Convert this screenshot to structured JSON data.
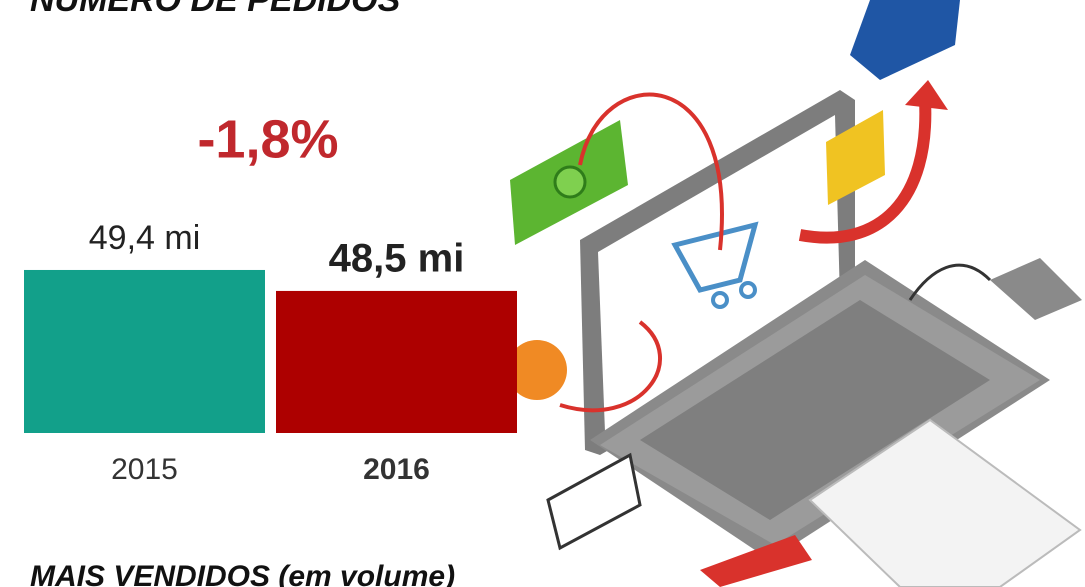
{
  "chart_data": {
    "type": "bar",
    "title": "NÚMERO DE PEDIDOS",
    "annotation": "-1,8%",
    "categories": [
      "2015",
      "2016"
    ],
    "values": [
      49.4,
      48.5
    ],
    "value_labels": [
      "49,4 mi",
      "48,5 mi"
    ],
    "colors": [
      "#12a08a",
      "#ad0000"
    ],
    "ylim": [
      42.4,
      50
    ],
    "footer": "MAIS VENDIDOS (em volume)"
  }
}
